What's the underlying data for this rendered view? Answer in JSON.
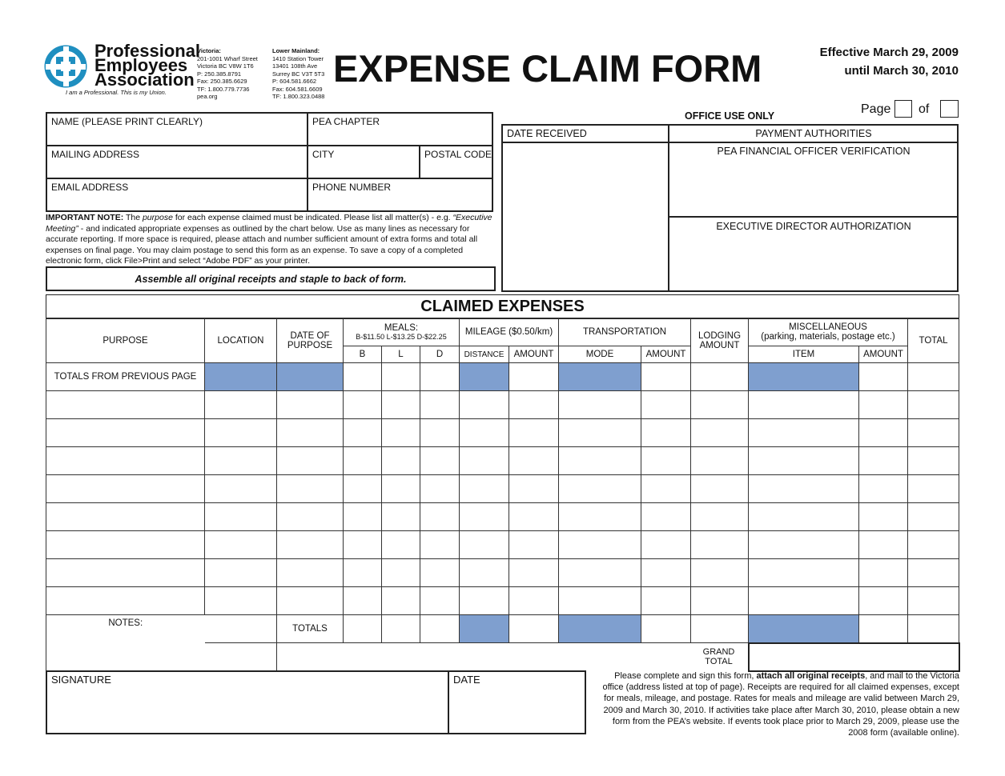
{
  "org": {
    "name_lines": [
      "Professional",
      "Employees",
      "Association"
    ],
    "tagline": "I am a Professional. This is my Union.",
    "brand_color": "#1f8fc0",
    "victoria": [
      "Victoria:",
      "201-1001 Wharf Street",
      "Victoria BC V8W 1T6",
      "P: 250.385.8791",
      "Fax: 250.385.6629",
      "TF: 1.800.779.7736",
      "pea.org"
    ],
    "lower": [
      "Lower Mainland:",
      "1410 Station Tower",
      "13401 108th Ave",
      "Surrey BC V3T 5T3",
      "P: 604.581.6662",
      "Fax: 604.581.6609",
      "TF: 1.800.323.0488"
    ]
  },
  "title": "EXPENSE CLAIM FORM",
  "effective": [
    "Effective March 29, 2009",
    "until March 30, 2010"
  ],
  "page_label": "Page",
  "of_label": "of",
  "fields": {
    "name": "NAME (PLEASE PRINT CLEARLY)",
    "chapter": "PEA CHAPTER",
    "address": "MAILING ADDRESS",
    "city": "CITY",
    "postal": "POSTAL CODE",
    "email": "EMAIL ADDRESS",
    "phone": "PHONE NUMBER"
  },
  "note": {
    "bold": "IMPORTANT NOTE:",
    "text1": " The ",
    "italic1": "purpose",
    "text2": " for each expense claimed must be indicated. Please list all matter(s) - e.g. ",
    "italic2": "“Executive Meeting”",
    "text3": " - and indicated appropriate expenses as outlined by the chart below. Use as many lines as necessary for accurate reporting. If more space is required, please attach and number sufficient amount of extra forms and total all expenses on final page. You may claim postage to send this form as an expense. To save a copy of a completed electronic form, click File>Print and select “Adobe PDF” as your printer."
  },
  "assemble": "Assemble all original receipts and staple to back of form.",
  "office": {
    "title": "OFFICE USE ONLY",
    "date_received": "DATE RECEIVED",
    "payment": "PAYMENT AUTHORITIES",
    "verification": "PEA FINANCIAL OFFICER VERIFICATION",
    "authorization": "EXECUTIVE DIRECTOR AUTHORIZATION"
  },
  "claimed": {
    "title": "CLAIMED EXPENSES",
    "purpose": "PURPOSE",
    "location": "LOCATION",
    "date": "DATE OF PURPOSE",
    "meals": "MEALS:",
    "meal_rates": "B-$11.50 L-$13.25 D-$22.25",
    "b": "B",
    "l": "L",
    "d": "D",
    "mileage": "MILEAGE ($0.50/km)",
    "distance": "DISTANCE",
    "amount": "AMOUNT",
    "transportation": "TRANSPORTATION",
    "mode": "MODE",
    "lodging": "LODGING AMOUNT",
    "misc": "MISCELLANEOUS",
    "misc_sub": "(parking, materials, postage etc.)",
    "item": "ITEM",
    "total": "TOTAL",
    "prev": "TOTALS FROM PREVIOUS PAGE",
    "notes": "NOTES:",
    "totals": "TOTALS",
    "grand": "GRAND TOTAL",
    "shade_color": "#7f9fcf"
  },
  "signature": "SIGNATURE",
  "date": "DATE",
  "footer": {
    "t1": "Please complete and sign this form, ",
    "b1": "attach all original receipts",
    "t2": ", and mail to the Victoria office (address listed at top of page). Receipts are required for all claimed expenses, except for meals, mileage, and postage. Rates for meals and mileage are valid between  March 29, 2009 and March 30, 2010. If activities take place after March 30, 2010, please obtain a new form from the PEA’s website. If events took place prior to March 29, 2009, please use the 2008 form (available online)."
  }
}
